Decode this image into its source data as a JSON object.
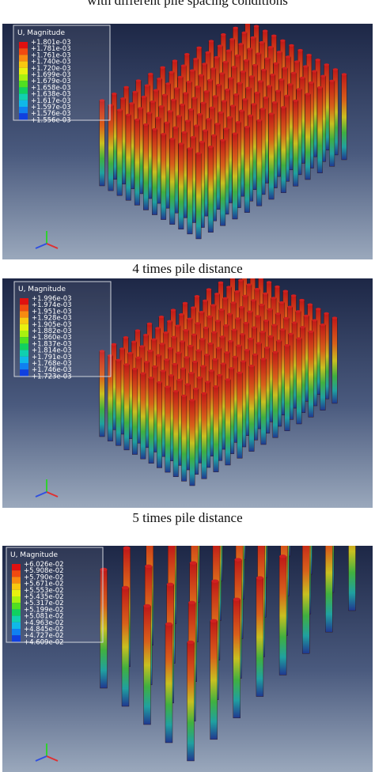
{
  "caption_top": "with different pile spacing conditions",
  "panels": [
    {
      "legend_title": "U, Magnitude",
      "legend_values": [
        "+1.801e-03",
        "+1.781e-03",
        "+1.761e-03",
        "+1.740e-03",
        "+1.720e-03",
        "+1.699e-03",
        "+1.679e-03",
        "+1.658e-03",
        "+1.638e-03",
        "+1.617e-03",
        "+1.597e-03",
        "+1.576e-03",
        "+1.556e-03"
      ],
      "caption": "4 times pile distance"
    },
    {
      "legend_title": "U, Magnitude",
      "legend_values": [
        "+1.996e-03",
        "+1.974e-03",
        "+1.951e-03",
        "+1.928e-03",
        "+1.905e-03",
        "+1.882e-03",
        "+1.860e-03",
        "+1.837e-03",
        "+1.814e-03",
        "+1.791e-03",
        "+1.768e-03",
        "+1.746e-03",
        "+1.723e-03"
      ],
      "caption": "5 times pile distance"
    },
    {
      "legend_title": "U, Magnitude",
      "legend_values": [
        "+6.026e-02",
        "+5.908e-02",
        "+5.790e-02",
        "+5.671e-02",
        "+5.553e-02",
        "+5.435e-02",
        "+5.317e-02",
        "+5.199e-02",
        "+5.081e-02",
        "+4.963e-02",
        "+4.845e-02",
        "+4.727e-02",
        "+4.609e-02"
      ]
    }
  ]
}
